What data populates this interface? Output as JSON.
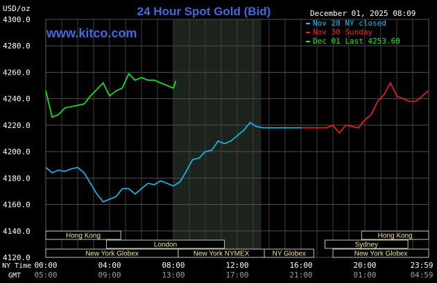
{
  "chart_data": {
    "type": "line",
    "title": "24 Hour Spot Gold (Bid)",
    "watermark": "www.kitco.com",
    "date_label": "December 01, 2025 08:09",
    "ylabel": "USD/oz",
    "ylim": [
      4120,
      4300
    ],
    "yticks": [
      "4300.0",
      "4280.0",
      "4260.0",
      "4240.0",
      "4220.0",
      "4200.0",
      "4180.0",
      "4160.0",
      "4140.0",
      "4120.0"
    ],
    "ytick_values": [
      4300,
      4280,
      4260,
      4240,
      4220,
      4200,
      4180,
      4160,
      4140,
      4120
    ],
    "xlim": [
      0,
      24
    ],
    "xtick_hours": [
      0,
      4,
      8,
      12,
      16,
      20,
      23.98
    ],
    "x_row_labels": {
      "ny": "NY Time",
      "gmt": "GMT"
    },
    "xticks_ny": [
      "00:00",
      "04:00",
      "08:00",
      "12:00",
      "16:00",
      "20:00",
      "23:59"
    ],
    "xticks_gmt": [
      "05:00",
      "09:00",
      "13:00",
      "17:00",
      "21:00",
      "01:00",
      "04:59"
    ],
    "grid": true,
    "legend_position": "top-right",
    "shaded_region_hours": [
      8,
      13.5
    ],
    "series": [
      {
        "name": "Nov 28 NY closed",
        "color": "#00c8ff",
        "x": [
          0,
          0.4,
          0.8,
          1.2,
          1.6,
          2,
          2.4,
          2.8,
          3.2,
          3.6,
          4,
          4.4,
          4.8,
          5.2,
          5.6,
          6,
          6.4,
          6.8,
          7.2,
          7.6,
          8,
          8.4,
          8.8,
          9.2,
          9.6,
          10,
          10.4,
          10.8,
          11.2,
          11.6,
          12,
          12.4,
          12.8,
          13.2,
          13.6,
          14,
          14.4,
          14.8,
          15.2,
          15.6,
          16
        ],
        "y": [
          4188,
          4184,
          4186,
          4185,
          4187,
          4188,
          4184,
          4176,
          4168,
          4162,
          4164,
          4166,
          4172,
          4172,
          4168,
          4172,
          4176,
          4175,
          4178,
          4176,
          4174,
          4177,
          4185,
          4194,
          4195,
          4200,
          4201,
          4208,
          4206,
          4208,
          4212,
          4216,
          4222,
          4219,
          4218,
          4218,
          4218,
          4218,
          4218,
          4218,
          4218
        ]
      },
      {
        "name": "Nov 30 Sunday",
        "color": "#ff1a1a",
        "x": [
          16,
          16.4,
          16.8,
          17.2,
          17.6,
          18,
          18.4,
          18.8,
          19.2,
          19.6,
          20,
          20.4,
          20.8,
          21.2,
          21.6,
          22,
          22.4,
          22.8,
          23.2,
          23.6,
          23.98
        ],
        "y": [
          4218,
          4218,
          4218,
          4218,
          4218,
          4220,
          4214,
          4220,
          4219,
          4218,
          4224,
          4228,
          4238,
          4243,
          4252,
          4242,
          4240,
          4238,
          4238,
          4242,
          4246
        ]
      },
      {
        "name": "Dec 01 Last 4253.60",
        "color": "#00ff00",
        "x": [
          0,
          0.4,
          0.8,
          1.2,
          1.6,
          2,
          2.4,
          2.8,
          3.2,
          3.6,
          4,
          4.4,
          4.8,
          5.2,
          5.6,
          6,
          6.4,
          6.8,
          7.2,
          7.6,
          8,
          8.15
        ],
        "y": [
          4246,
          4226,
          4228,
          4233,
          4234,
          4235,
          4236,
          4242,
          4247,
          4252,
          4242,
          4246,
          4248,
          4259,
          4254,
          4256,
          4254,
          4254,
          4252,
          4250,
          4248,
          4253.6
        ]
      }
    ],
    "sessions": [
      {
        "label": "Hong Kong",
        "start": 0,
        "end": 4.7,
        "row": 0
      },
      {
        "label": "London",
        "start": 3.8,
        "end": 11.2,
        "row": 1
      },
      {
        "label": "New York Globex",
        "start": 0,
        "end": 8.3,
        "row": 2
      },
      {
        "label": "New York NYMEX",
        "start": 8.3,
        "end": 13.7,
        "row": 2
      },
      {
        "label": "NY Globex",
        "start": 13.7,
        "end": 16.8,
        "row": 2
      },
      {
        "label": "Hong Kong",
        "start": 19.8,
        "end": 24,
        "row": 0
      },
      {
        "label": "Sydney",
        "start": 17.5,
        "end": 22.7,
        "row": 1
      },
      {
        "label": "New York Globex",
        "start": 18,
        "end": 24,
        "row": 2
      }
    ]
  }
}
